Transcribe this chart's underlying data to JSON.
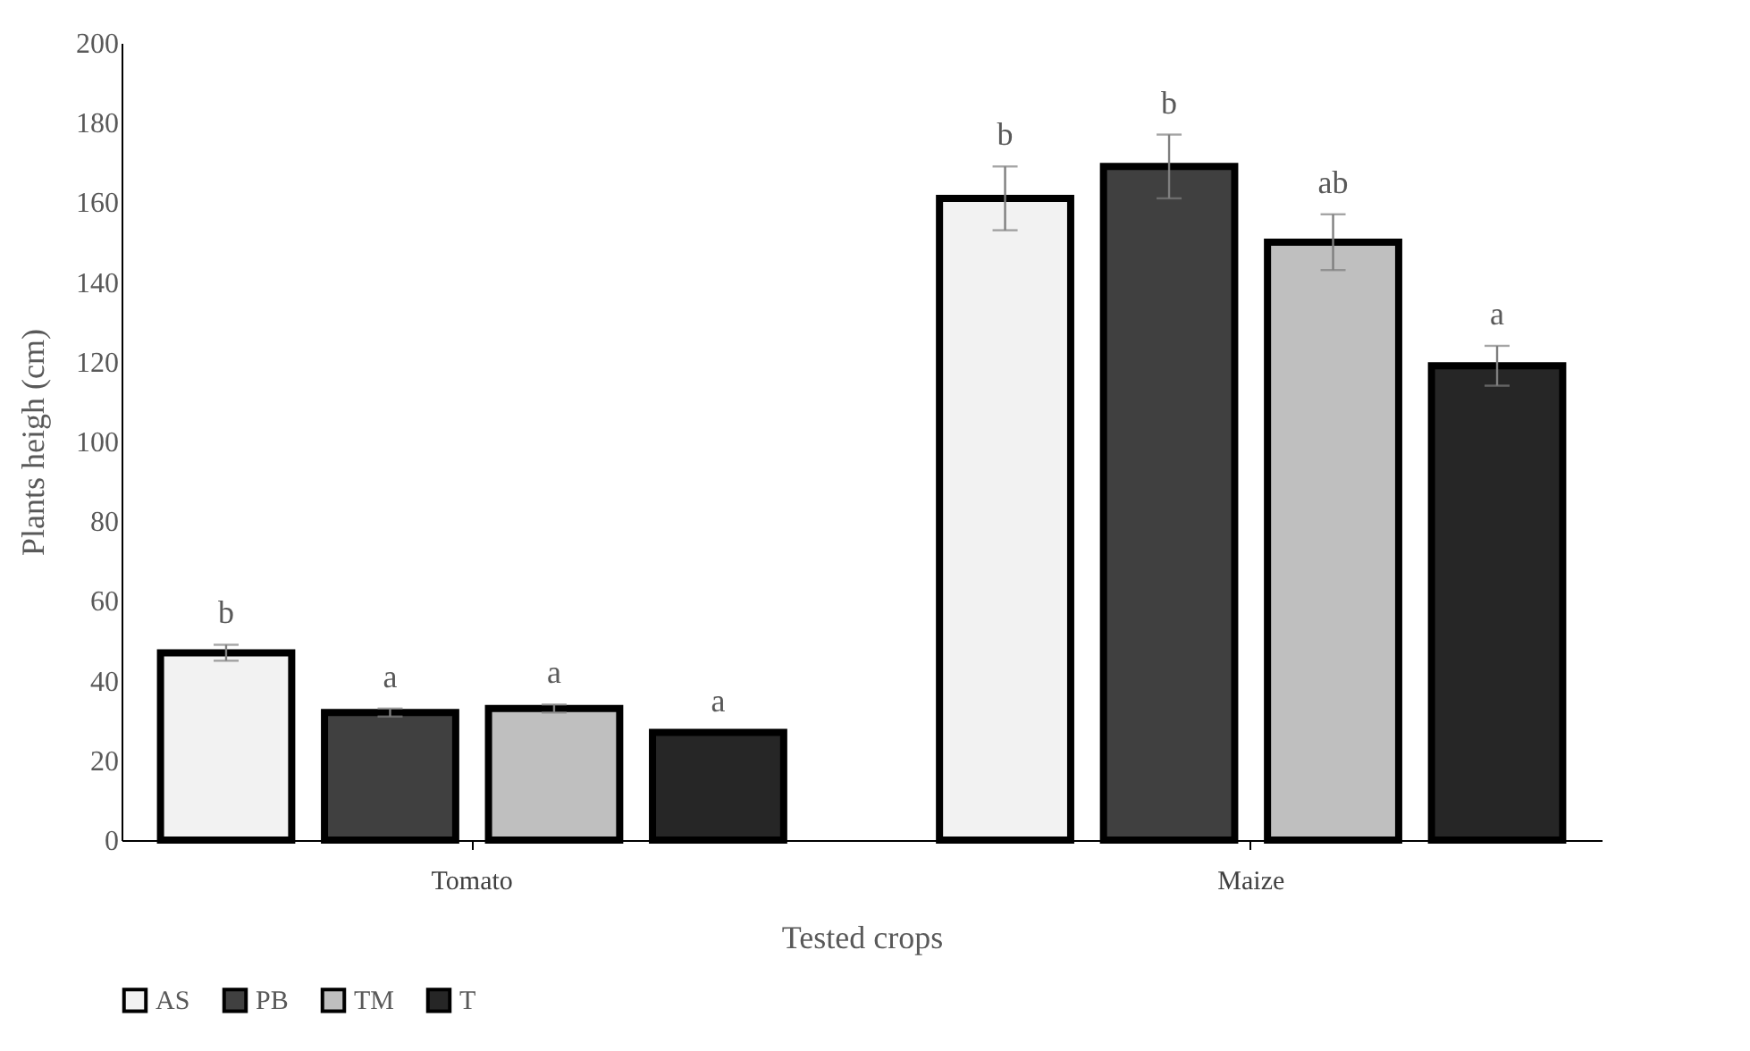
{
  "chart_data": {
    "type": "bar",
    "xlabel": "Tested crops",
    "ylabel": "Plants heigh (cm)",
    "categories": [
      "Tomato",
      "Maize"
    ],
    "series": [
      {
        "name": "AS",
        "color": "#f2f2f2",
        "values": [
          47,
          161
        ],
        "errors": [
          2,
          8
        ],
        "value_labels": [
          "b",
          "b"
        ]
      },
      {
        "name": "PB",
        "color": "#404040",
        "values": [
          32,
          169
        ],
        "errors": [
          1,
          8
        ],
        "value_labels": [
          "a",
          "b"
        ]
      },
      {
        "name": "TM",
        "color": "#bfbfbf",
        "values": [
          33,
          150
        ],
        "errors": [
          1,
          7
        ],
        "value_labels": [
          "a",
          "ab"
        ]
      },
      {
        "name": "T",
        "color": "#262626",
        "values": [
          27,
          119
        ],
        "errors": [
          null,
          5
        ],
        "value_labels": [
          "a",
          "a"
        ]
      }
    ],
    "ylim": [
      0,
      200
    ],
    "yticks": [
      0,
      20,
      40,
      60,
      80,
      100,
      120,
      140,
      160,
      180,
      200
    ],
    "grid": false,
    "legend": "bottom"
  }
}
